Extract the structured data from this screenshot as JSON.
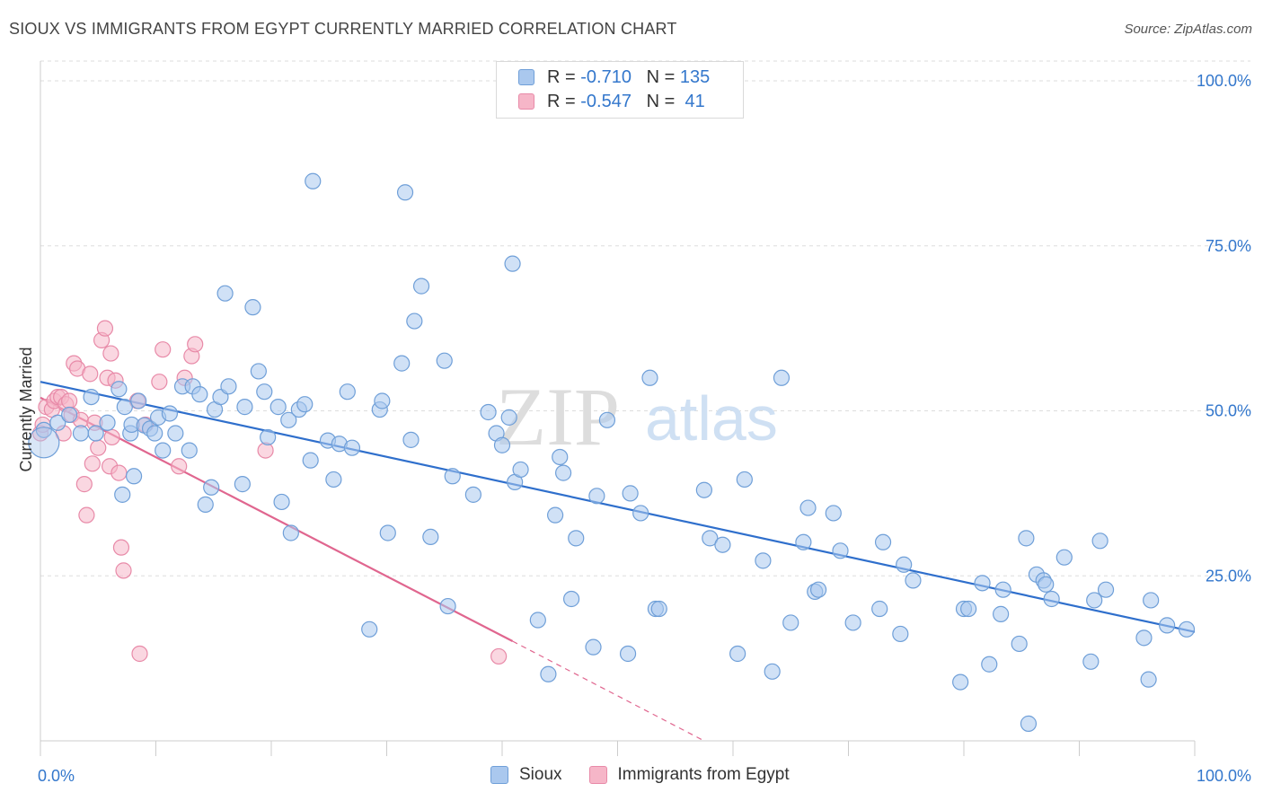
{
  "title": "SIOUX VS IMMIGRANTS FROM EGYPT CURRENTLY MARRIED CORRELATION CHART",
  "source": "Source: ZipAtlas.com",
  "watermark": {
    "zip": "ZIP",
    "atlas": "atlas"
  },
  "legend": {
    "rows": [
      {
        "r_label": "R = ",
        "r_value": "-0.710",
        "n_label": "N = ",
        "n_value": "135"
      },
      {
        "r_label": "R = ",
        "r_value": "-0.547",
        "n_label": "N = ",
        "n_value": " 41"
      }
    ]
  },
  "colors": {
    "sioux_fill": "#aac8ee",
    "sioux_stroke": "#6f9fd8",
    "sioux_line": "#2f6fcc",
    "egypt_fill": "#f6b6c8",
    "egypt_stroke": "#e88aa8",
    "egypt_line": "#e0668f",
    "axis_text": "#3377cc",
    "grid": "#dddddd"
  },
  "chart_data": {
    "type": "scatter",
    "title": "SIOUX VS IMMIGRANTS FROM EGYPT CURRENTLY MARRIED CORRELATION CHART",
    "xlabel": "",
    "ylabel": "Currently Married",
    "xlim": [
      0,
      100
    ],
    "ylim": [
      0,
      103
    ],
    "x_tick_labels": [
      {
        "value": 0,
        "label": "0.0%"
      },
      {
        "value": 100,
        "label": "100.0%"
      }
    ],
    "y_tick_labels": [
      {
        "value": 25,
        "label": "25.0%"
      },
      {
        "value": 50,
        "label": "50.0%"
      },
      {
        "value": 75,
        "label": "75.0%"
      },
      {
        "value": 100,
        "label": "100.0%"
      }
    ],
    "series": [
      {
        "name": "Sioux",
        "R": -0.71,
        "N": 135,
        "trend": {
          "x0": 0,
          "y0": 54.4,
          "x1": 100,
          "y1": 16.5
        },
        "points": [
          [
            0.3,
            47.1
          ],
          [
            1.5,
            48.2
          ],
          [
            2.5,
            49.4
          ],
          [
            3.5,
            46.6
          ],
          [
            4.4,
            52.1
          ],
          [
            4.8,
            46.6
          ],
          [
            5.8,
            48.2
          ],
          [
            6.8,
            53.3
          ],
          [
            7.1,
            37.3
          ],
          [
            7.3,
            50.6
          ],
          [
            7.8,
            46.6
          ],
          [
            7.9,
            47.9
          ],
          [
            8.1,
            40.1
          ],
          [
            8.5,
            51.5
          ],
          [
            9.0,
            47.8
          ],
          [
            9.5,
            47.3
          ],
          [
            9.9,
            46.6
          ],
          [
            10.2,
            49.0
          ],
          [
            10.6,
            44.0
          ],
          [
            11.2,
            49.6
          ],
          [
            11.7,
            46.6
          ],
          [
            12.3,
            53.7
          ],
          [
            12.9,
            44.0
          ],
          [
            13.2,
            53.7
          ],
          [
            13.8,
            52.5
          ],
          [
            14.3,
            35.8
          ],
          [
            14.8,
            38.4
          ],
          [
            15.1,
            50.2
          ],
          [
            15.6,
            52.1
          ],
          [
            16.0,
            67.8
          ],
          [
            16.3,
            53.7
          ],
          [
            17.5,
            38.9
          ],
          [
            17.7,
            50.6
          ],
          [
            18.4,
            65.7
          ],
          [
            18.9,
            56.0
          ],
          [
            19.4,
            52.9
          ],
          [
            19.7,
            46.0
          ],
          [
            20.6,
            50.6
          ],
          [
            20.9,
            36.2
          ],
          [
            21.5,
            48.6
          ],
          [
            21.7,
            31.5
          ],
          [
            22.4,
            50.2
          ],
          [
            22.9,
            51.0
          ],
          [
            23.4,
            42.5
          ],
          [
            23.6,
            84.8
          ],
          [
            24.9,
            45.5
          ],
          [
            25.4,
            39.6
          ],
          [
            25.9,
            45.0
          ],
          [
            26.6,
            52.9
          ],
          [
            27.0,
            44.4
          ],
          [
            28.5,
            16.9
          ],
          [
            29.4,
            50.2
          ],
          [
            29.6,
            51.5
          ],
          [
            30.1,
            31.5
          ],
          [
            31.3,
            57.2
          ],
          [
            31.6,
            83.1
          ],
          [
            32.1,
            45.6
          ],
          [
            32.4,
            63.6
          ],
          [
            33.0,
            68.9
          ],
          [
            33.8,
            30.9
          ],
          [
            35.0,
            57.6
          ],
          [
            35.3,
            20.4
          ],
          [
            35.7,
            40.1
          ],
          [
            37.5,
            37.3
          ],
          [
            38.8,
            49.8
          ],
          [
            39.5,
            46.6
          ],
          [
            40.0,
            44.8
          ],
          [
            40.6,
            49.0
          ],
          [
            40.9,
            72.3
          ],
          [
            41.1,
            39.2
          ],
          [
            41.6,
            41.1
          ],
          [
            43.1,
            18.3
          ],
          [
            44.0,
            10.1
          ],
          [
            44.6,
            34.2
          ],
          [
            45.0,
            43.0
          ],
          [
            45.3,
            40.6
          ],
          [
            46.0,
            21.5
          ],
          [
            46.4,
            30.7
          ],
          [
            47.9,
            14.2
          ],
          [
            48.2,
            37.1
          ],
          [
            49.1,
            48.6
          ],
          [
            50.9,
            13.2
          ],
          [
            51.1,
            37.5
          ],
          [
            52.0,
            34.5
          ],
          [
            52.8,
            55.0
          ],
          [
            53.3,
            20.0
          ],
          [
            53.6,
            20.0
          ],
          [
            57.5,
            38.0
          ],
          [
            58.0,
            30.7
          ],
          [
            59.1,
            29.7
          ],
          [
            60.4,
            13.2
          ],
          [
            61.0,
            39.6
          ],
          [
            62.6,
            27.3
          ],
          [
            63.4,
            10.5
          ],
          [
            64.2,
            55.0
          ],
          [
            65.0,
            17.9
          ],
          [
            66.1,
            30.1
          ],
          [
            66.5,
            35.3
          ],
          [
            67.1,
            22.6
          ],
          [
            67.4,
            22.9
          ],
          [
            68.7,
            34.5
          ],
          [
            69.3,
            28.8
          ],
          [
            70.4,
            17.9
          ],
          [
            72.7,
            20.0
          ],
          [
            73.0,
            30.1
          ],
          [
            74.5,
            16.2
          ],
          [
            74.8,
            26.7
          ],
          [
            75.6,
            24.3
          ],
          [
            79.7,
            8.9
          ],
          [
            80.0,
            20.0
          ],
          [
            80.4,
            20.0
          ],
          [
            81.6,
            23.9
          ],
          [
            82.2,
            11.6
          ],
          [
            83.2,
            19.2
          ],
          [
            83.4,
            22.9
          ],
          [
            84.8,
            14.7
          ],
          [
            85.4,
            30.7
          ],
          [
            85.6,
            2.6
          ],
          [
            86.3,
            25.2
          ],
          [
            86.9,
            24.3
          ],
          [
            87.1,
            23.7
          ],
          [
            87.6,
            21.5
          ],
          [
            88.7,
            27.8
          ],
          [
            91.0,
            12.0
          ],
          [
            91.3,
            21.3
          ],
          [
            91.8,
            30.3
          ],
          [
            92.3,
            22.9
          ],
          [
            97.6,
            17.5
          ],
          [
            95.6,
            15.6
          ],
          [
            96.2,
            21.3
          ],
          [
            96.0,
            9.3
          ],
          [
            99.3,
            16.9
          ]
        ]
      },
      {
        "name": "Immigrants from Egypt",
        "R": -0.547,
        "N": 41,
        "trend": {
          "x0": 0,
          "y0": 52.0,
          "x1": 40.9,
          "y1": 15.1
        },
        "trend_extension": {
          "x0": 40.9,
          "y0": 15.1,
          "x1": 57.5,
          "y1": 0
        },
        "points": [
          [
            0.0,
            46.6
          ],
          [
            0.2,
            47.9
          ],
          [
            0.5,
            50.6
          ],
          [
            1.0,
            50.2
          ],
          [
            1.2,
            51.5
          ],
          [
            1.5,
            52.1
          ],
          [
            1.8,
            52.1
          ],
          [
            2.0,
            46.6
          ],
          [
            2.2,
            51.0
          ],
          [
            2.5,
            51.5
          ],
          [
            2.7,
            49.4
          ],
          [
            2.9,
            57.2
          ],
          [
            3.2,
            56.4
          ],
          [
            3.5,
            48.6
          ],
          [
            3.8,
            38.9
          ],
          [
            4.0,
            34.2
          ],
          [
            4.3,
            55.6
          ],
          [
            4.5,
            42.0
          ],
          [
            4.7,
            48.2
          ],
          [
            5.0,
            44.4
          ],
          [
            5.3,
            60.7
          ],
          [
            5.6,
            62.5
          ],
          [
            5.8,
            55.0
          ],
          [
            6.0,
            41.6
          ],
          [
            6.2,
            46.0
          ],
          [
            6.5,
            54.6
          ],
          [
            6.8,
            40.6
          ],
          [
            7.0,
            29.3
          ],
          [
            7.2,
            25.8
          ],
          [
            8.4,
            51.5
          ],
          [
            8.6,
            13.2
          ],
          [
            9.1,
            47.9
          ],
          [
            10.3,
            54.4
          ],
          [
            10.6,
            59.3
          ],
          [
            12.0,
            41.6
          ],
          [
            12.5,
            55.0
          ],
          [
            13.1,
            58.3
          ],
          [
            13.4,
            60.1
          ],
          [
            19.5,
            44.0
          ],
          [
            39.7,
            12.8
          ],
          [
            6.1,
            58.7
          ]
        ]
      }
    ]
  },
  "bottom_legend": [
    {
      "label": "Sioux"
    },
    {
      "label": "Immigrants from Egypt"
    }
  ]
}
